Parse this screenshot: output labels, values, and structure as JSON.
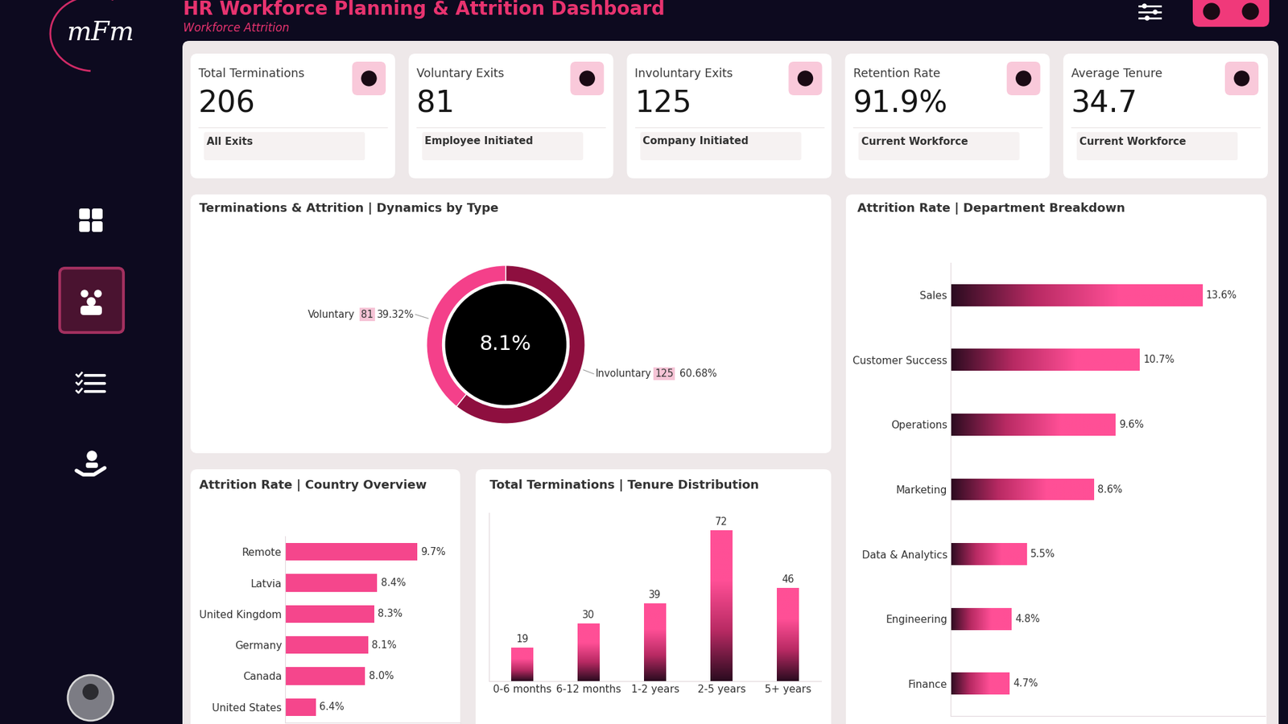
{
  "header": {
    "logo": "mFm",
    "title": "HR Workforce Planning & Attrition Dashboard",
    "subtitle": "Workforce Attrition"
  },
  "kpi_cards": [
    {
      "title": "Total Terminations",
      "value": "206",
      "caption": "All Exits"
    },
    {
      "title": "Voluntary Exits",
      "value": "81",
      "caption": "Employee Initiated"
    },
    {
      "title": "Involuntary Exits",
      "value": "125",
      "caption": "Company Initiated"
    },
    {
      "title": "Retention Rate",
      "value": "91.9%",
      "caption": "Current Workforce"
    },
    {
      "title": "Average Tenure",
      "value": "34.7",
      "caption": "Current Workforce"
    }
  ],
  "chart_data": [
    {
      "type": "donut",
      "title": "Terminations & Attrition | Dynamics by Type",
      "center_label": "8.1%",
      "categories": [
        "Voluntary",
        "Involuntary"
      ],
      "values": [
        81,
        125
      ],
      "percent_labels": [
        "39.32%",
        "60.68%"
      ],
      "colors": [
        "#f4408a",
        "#8e0f3f"
      ],
      "data_labels": true
    },
    {
      "type": "bar",
      "orientation": "horizontal",
      "title": "Attrition Rate | Department Breakdown",
      "categories": [
        "Sales",
        "Customer Success",
        "Operations",
        "Marketing",
        "Data & Analytics",
        "Engineering",
        "Finance"
      ],
      "values": [
        13.6,
        10.7,
        9.6,
        8.6,
        5.5,
        4.8,
        4.7
      ],
      "value_labels": [
        "13.6%",
        "10.7%",
        "9.6%",
        "8.6%",
        "5.5%",
        "4.8%",
        "4.7%"
      ],
      "xlim": [
        2,
        16.5
      ],
      "data_labels": true,
      "tick_labels": "y",
      "color": "#ff4f96"
    },
    {
      "type": "bar",
      "orientation": "horizontal",
      "title": "Attrition Rate | Country Overview",
      "categories": [
        "Remote",
        "Latvia",
        "United Kingdom",
        "Germany",
        "Canada",
        "United States"
      ],
      "values": [
        9.7,
        8.4,
        8.3,
        8.1,
        8.0,
        6.4
      ],
      "value_labels": [
        "9.7%",
        "8.4%",
        "8.3%",
        "8.1%",
        "8.0%",
        "6.4%"
      ],
      "xlim": [
        5.4,
        11.1
      ],
      "data_labels": true,
      "tick_labels": "y",
      "color": "#f5468c"
    },
    {
      "type": "bar",
      "title": "Total Terminations | Tenure Distribution",
      "categories": [
        "0-6 months",
        "6-12 months",
        "1-2 years",
        "2-5 years",
        "5+ years"
      ],
      "values": [
        19,
        30,
        39,
        72,
        46
      ],
      "ylim": [
        4,
        80
      ],
      "data_labels": true,
      "tick_labels": "x",
      "color": "#ff4f96"
    }
  ]
}
